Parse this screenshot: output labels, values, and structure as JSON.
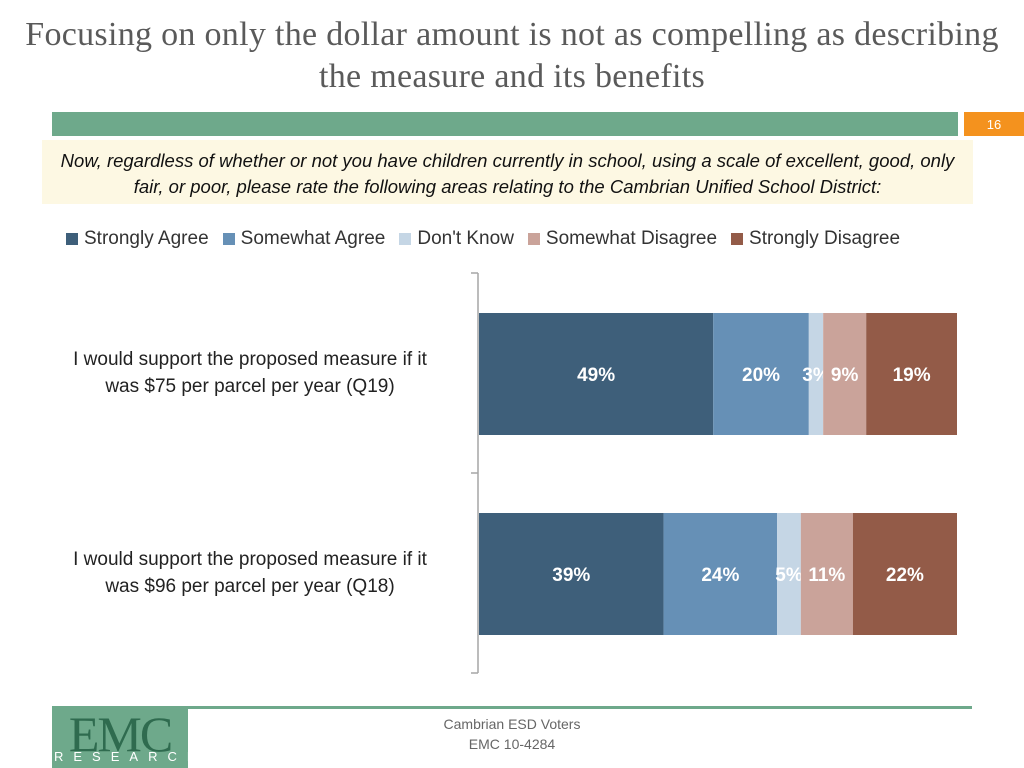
{
  "slide": {
    "title": "Focusing on only the dollar amount is not as compelling as describing the measure and its benefits",
    "page_number": "16",
    "question": "Now, regardless of whether or not you have children currently in school, using a scale of excellent, good, only fair, or poor, please rate the following areas relating to the Cambrian Unified School District:",
    "logo": {
      "main": "EMC",
      "sub": "RESEARCH"
    },
    "footer": {
      "line1": "Cambrian ESD Voters",
      "line2": "EMC 10-4284"
    }
  },
  "colors": {
    "strongly_agree": "#3e5f7a",
    "somewhat_agree": "#6690b6",
    "dont_know": "#c5d6e5",
    "somewhat_disagree": "#caa39a",
    "strongly_disagree": "#935b48",
    "accent_green": "#6ea98b",
    "accent_orange": "#f4921e"
  },
  "chart_data": {
    "type": "bar",
    "orientation": "horizontal",
    "stacked": true,
    "legend_position": "top",
    "categories": [
      "I would support the proposed measure if it was $75 per parcel per year (Q19)",
      "I would support the proposed measure if it was $96 per parcel per year (Q18)"
    ],
    "series": [
      {
        "name": "Strongly Agree",
        "values": [
          49,
          39
        ],
        "labels": [
          "49%",
          "39%"
        ]
      },
      {
        "name": "Somewhat Agree",
        "values": [
          20,
          24
        ],
        "labels": [
          "20%",
          "24%"
        ]
      },
      {
        "name": "Don't Know",
        "values": [
          3,
          5
        ],
        "labels": [
          "3%",
          "5%"
        ]
      },
      {
        "name": "Somewhat Disagree",
        "values": [
          9,
          11
        ],
        "labels": [
          "9%",
          "11%"
        ]
      },
      {
        "name": "Strongly Disagree",
        "values": [
          19,
          22
        ],
        "labels": [
          "19%",
          "22%"
        ]
      }
    ]
  }
}
